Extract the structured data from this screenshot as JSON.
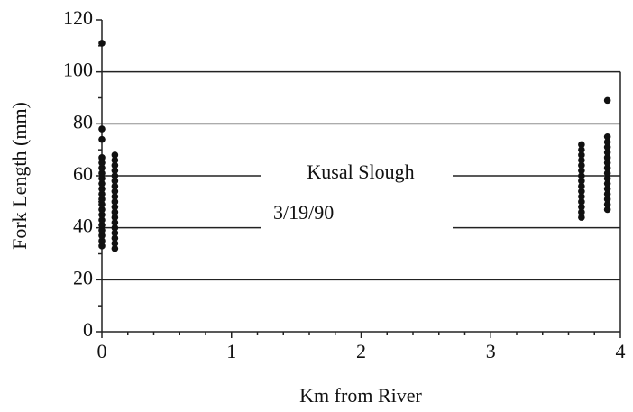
{
  "chart_data": {
    "type": "scatter",
    "annotations": [
      "Kusal Slough",
      "3/19/90"
    ],
    "xlabel": "Km from River",
    "ylabel": "Fork Length (mm)",
    "xlim": [
      0,
      4
    ],
    "ylim": [
      0,
      120
    ],
    "xticks": [
      0,
      1,
      2,
      3,
      4
    ],
    "yticks": [
      0,
      20,
      40,
      60,
      80,
      100,
      120
    ],
    "xminorticks": [
      0.2,
      0.4,
      0.6,
      0.8,
      1.2,
      1.4,
      1.6,
      1.8,
      2.2,
      2.4,
      2.6,
      2.8,
      3.2,
      3.4,
      3.6,
      3.8
    ],
    "yminorticks": [
      10,
      30,
      50,
      70,
      90,
      110
    ],
    "grid": true,
    "color": "#111",
    "x": [
      0,
      0,
      0,
      0,
      0,
      0,
      0,
      0,
      0,
      0,
      0,
      0,
      0,
      0,
      0,
      0,
      0,
      0,
      0,
      0,
      0,
      0.1,
      0.1,
      0.1,
      0.1,
      0.1,
      0.1,
      0.1,
      0.1,
      0.1,
      0.1,
      0.1,
      0.1,
      0.1,
      0.1,
      0.1,
      0.1,
      0.1,
      0.1,
      0.1,
      3.7,
      3.7,
      3.7,
      3.7,
      3.7,
      3.7,
      3.7,
      3.7,
      3.7,
      3.7,
      3.7,
      3.7,
      3.7,
      3.7,
      3.7,
      3.9,
      3.9,
      3.9,
      3.9,
      3.9,
      3.9,
      3.9,
      3.9,
      3.9,
      3.9,
      3.9,
      3.9,
      3.9,
      3.9,
      3.9,
      3.9
    ],
    "values": [
      33,
      35,
      37,
      39,
      41,
      43,
      45,
      47,
      49,
      51,
      53,
      55,
      57,
      59,
      61,
      63,
      65,
      67,
      74,
      78,
      111,
      32,
      34,
      36,
      38,
      40,
      42,
      44,
      46,
      48,
      50,
      52,
      54,
      56,
      58,
      60,
      62,
      64,
      66,
      68,
      44,
      46,
      48,
      50,
      52,
      54,
      56,
      58,
      60,
      62,
      64,
      66,
      68,
      70,
      72,
      47,
      49,
      51,
      53,
      55,
      57,
      59,
      61,
      63,
      65,
      67,
      69,
      71,
      73,
      75,
      89
    ]
  }
}
